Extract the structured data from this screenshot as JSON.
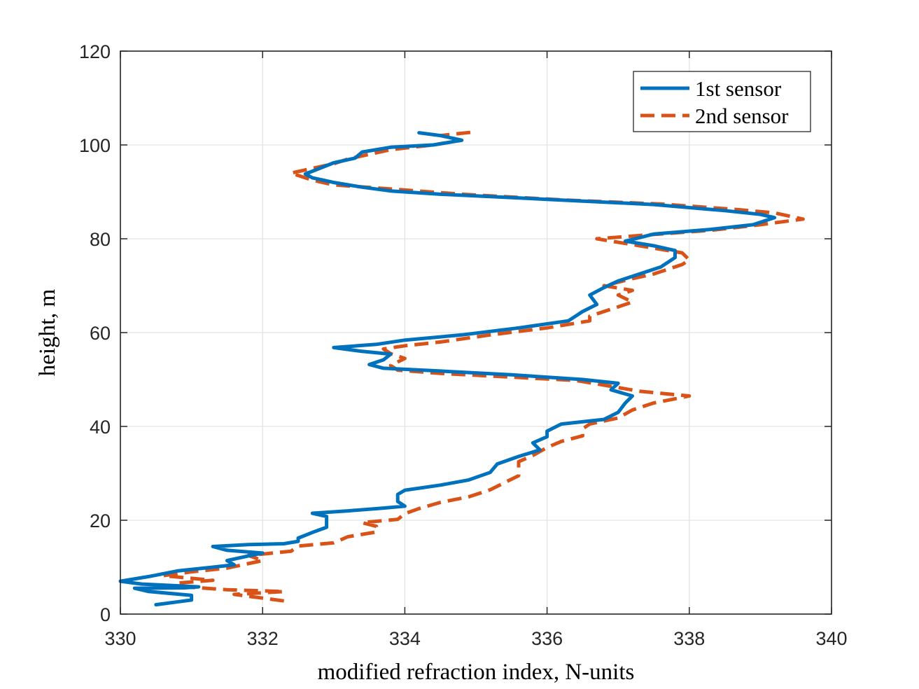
{
  "chart_data": {
    "type": "line",
    "title": "",
    "xlabel": "modified refraction index, N-units",
    "ylabel": "height, m",
    "xlim": [
      330,
      340
    ],
    "ylim": [
      0,
      120
    ],
    "xticks": [
      "330",
      "332",
      "334",
      "336",
      "338",
      "340"
    ],
    "yticks": [
      "0",
      "20",
      "40",
      "60",
      "80",
      "100",
      "120"
    ],
    "grid": true,
    "legend_position": "top-right",
    "series": [
      {
        "name": "1st sensor",
        "color": "#0072BD",
        "style": "solid",
        "points": [
          [
            330.5,
            2
          ],
          [
            331.0,
            3
          ],
          [
            331.0,
            4
          ],
          [
            330.4,
            4.8
          ],
          [
            330.2,
            5.5
          ],
          [
            330.9,
            5.6
          ],
          [
            331.1,
            5.8
          ],
          [
            330.3,
            6.4
          ],
          [
            330.0,
            7.0
          ],
          [
            330.4,
            8.0
          ],
          [
            330.8,
            9.2
          ],
          [
            331.3,
            10.0
          ],
          [
            331.6,
            10.5
          ],
          [
            331.5,
            11.4
          ],
          [
            331.8,
            12.4
          ],
          [
            332.0,
            13.0
          ],
          [
            331.5,
            13.6
          ],
          [
            331.3,
            14.4
          ],
          [
            331.8,
            14.8
          ],
          [
            332.3,
            15.0
          ],
          [
            332.5,
            15.5
          ],
          [
            332.5,
            16.2
          ],
          [
            332.7,
            17.4
          ],
          [
            332.9,
            18.5
          ],
          [
            332.9,
            19.6
          ],
          [
            332.9,
            20.8
          ],
          [
            332.7,
            21.5
          ],
          [
            333.2,
            22.0
          ],
          [
            333.7,
            22.6
          ],
          [
            334.0,
            23.0
          ],
          [
            333.9,
            24.0
          ],
          [
            333.9,
            25.5
          ],
          [
            334.0,
            26.4
          ],
          [
            334.5,
            27.5
          ],
          [
            334.9,
            28.6
          ],
          [
            335.2,
            30.2
          ],
          [
            335.3,
            32.0
          ],
          [
            335.6,
            33.6
          ],
          [
            335.9,
            35.0
          ],
          [
            335.8,
            36.5
          ],
          [
            336.0,
            37.8
          ],
          [
            336.0,
            39.0
          ],
          [
            336.2,
            40.5
          ],
          [
            336.8,
            41.5
          ],
          [
            337.0,
            43.0
          ],
          [
            337.1,
            45.0
          ],
          [
            337.2,
            46.5
          ],
          [
            336.9,
            47.8
          ],
          [
            337.0,
            49.2
          ],
          [
            336.5,
            50.0
          ],
          [
            335.5,
            51.0
          ],
          [
            334.5,
            51.8
          ],
          [
            333.7,
            52.4
          ],
          [
            333.5,
            53.2
          ],
          [
            333.7,
            54.2
          ],
          [
            333.8,
            55.4
          ],
          [
            333.4,
            56.0
          ],
          [
            333.0,
            56.8
          ],
          [
            333.6,
            57.5
          ],
          [
            334.0,
            58.4
          ],
          [
            334.8,
            59.5
          ],
          [
            335.6,
            61.0
          ],
          [
            336.3,
            62.5
          ],
          [
            336.5,
            64.5
          ],
          [
            336.7,
            66.0
          ],
          [
            336.6,
            68.0
          ],
          [
            336.8,
            69.6
          ],
          [
            337.0,
            71.0
          ],
          [
            337.3,
            72.5
          ],
          [
            337.6,
            74.0
          ],
          [
            337.8,
            76.0
          ],
          [
            337.8,
            77.5
          ],
          [
            337.5,
            78.5
          ],
          [
            337.1,
            79.5
          ],
          [
            337.5,
            81.0
          ],
          [
            338.3,
            82.0
          ],
          [
            338.9,
            83.0
          ],
          [
            339.2,
            84.5
          ],
          [
            339.0,
            85.2
          ],
          [
            338.5,
            86.0
          ],
          [
            337.5,
            87.3
          ],
          [
            336.0,
            88.4
          ],
          [
            334.5,
            89.5
          ],
          [
            333.8,
            90.2
          ],
          [
            333.4,
            91.0
          ],
          [
            333.0,
            92.0
          ],
          [
            332.7,
            93.0
          ],
          [
            332.6,
            93.8
          ],
          [
            332.8,
            95.0
          ],
          [
            333.0,
            96.2
          ],
          [
            333.3,
            97.2
          ],
          [
            333.4,
            98.5
          ],
          [
            333.8,
            99.5
          ],
          [
            334.4,
            100.0
          ],
          [
            334.8,
            101.0
          ],
          [
            334.5,
            102.0
          ],
          [
            334.2,
            102.6
          ]
        ]
      },
      {
        "name": "2nd sensor",
        "color": "#D95319",
        "style": "dashed",
        "points": [
          [
            332.3,
            2.8
          ],
          [
            332.0,
            3.4
          ],
          [
            331.6,
            4.2
          ],
          [
            332.3,
            4.8
          ],
          [
            331.5,
            5.2
          ],
          [
            330.9,
            5.8
          ],
          [
            330.8,
            6.6
          ],
          [
            331.3,
            7.2
          ],
          [
            330.6,
            8.2
          ],
          [
            331.0,
            9.0
          ],
          [
            331.5,
            9.8
          ],
          [
            332.0,
            11.4
          ],
          [
            331.8,
            12.5
          ],
          [
            332.4,
            13.4
          ],
          [
            332.5,
            14.5
          ],
          [
            333.0,
            15.2
          ],
          [
            333.2,
            16.5
          ],
          [
            333.6,
            17.5
          ],
          [
            333.6,
            18.7
          ],
          [
            333.4,
            19.5
          ],
          [
            333.9,
            20.2
          ],
          [
            334.0,
            21.4
          ],
          [
            334.2,
            22.5
          ],
          [
            334.5,
            23.8
          ],
          [
            334.9,
            25.0
          ],
          [
            335.2,
            26.5
          ],
          [
            335.4,
            28.0
          ],
          [
            335.6,
            29.5
          ],
          [
            335.6,
            31.0
          ],
          [
            335.6,
            32.5
          ],
          [
            335.8,
            33.8
          ],
          [
            336.0,
            35.5
          ],
          [
            336.2,
            36.8
          ],
          [
            336.5,
            38.0
          ],
          [
            336.5,
            39.5
          ],
          [
            336.6,
            40.5
          ],
          [
            337.0,
            41.8
          ],
          [
            337.2,
            43.5
          ],
          [
            337.5,
            45.0
          ],
          [
            338.0,
            46.5
          ],
          [
            337.3,
            47.5
          ],
          [
            336.8,
            48.8
          ],
          [
            336.4,
            49.8
          ],
          [
            335.5,
            50.5
          ],
          [
            334.5,
            51.3
          ],
          [
            333.9,
            52.0
          ],
          [
            333.8,
            53.0
          ],
          [
            334.0,
            54.5
          ],
          [
            333.8,
            55.5
          ],
          [
            333.7,
            56.5
          ],
          [
            334.0,
            57.2
          ],
          [
            334.5,
            58.0
          ],
          [
            335.2,
            59.5
          ],
          [
            336.0,
            61.0
          ],
          [
            336.6,
            62.5
          ],
          [
            336.6,
            63.5
          ],
          [
            337.0,
            65.5
          ],
          [
            337.2,
            66.5
          ],
          [
            337.0,
            68.0
          ],
          [
            337.2,
            69.0
          ],
          [
            336.8,
            70.0
          ],
          [
            337.2,
            71.5
          ],
          [
            337.5,
            72.5
          ],
          [
            337.9,
            74.5
          ],
          [
            338.0,
            75.5
          ],
          [
            337.9,
            77.0
          ],
          [
            337.3,
            78.5
          ],
          [
            336.7,
            80.0
          ],
          [
            337.4,
            80.8
          ],
          [
            338.3,
            81.8
          ],
          [
            338.9,
            82.8
          ],
          [
            339.6,
            84.2
          ],
          [
            339.2,
            85.5
          ],
          [
            338.7,
            86.2
          ],
          [
            337.6,
            87.4
          ],
          [
            336.2,
            88.3
          ],
          [
            334.8,
            89.5
          ],
          [
            333.9,
            90.5
          ],
          [
            333.0,
            91.5
          ],
          [
            332.7,
            92.5
          ],
          [
            332.4,
            94.0
          ],
          [
            332.7,
            95.0
          ],
          [
            333.0,
            96.0
          ],
          [
            333.2,
            97.0
          ],
          [
            333.5,
            98.0
          ],
          [
            333.8,
            99.0
          ],
          [
            334.4,
            100.0
          ],
          [
            334.8,
            101.0
          ],
          [
            334.5,
            102.0
          ],
          [
            335.0,
            102.8
          ]
        ]
      }
    ]
  }
}
